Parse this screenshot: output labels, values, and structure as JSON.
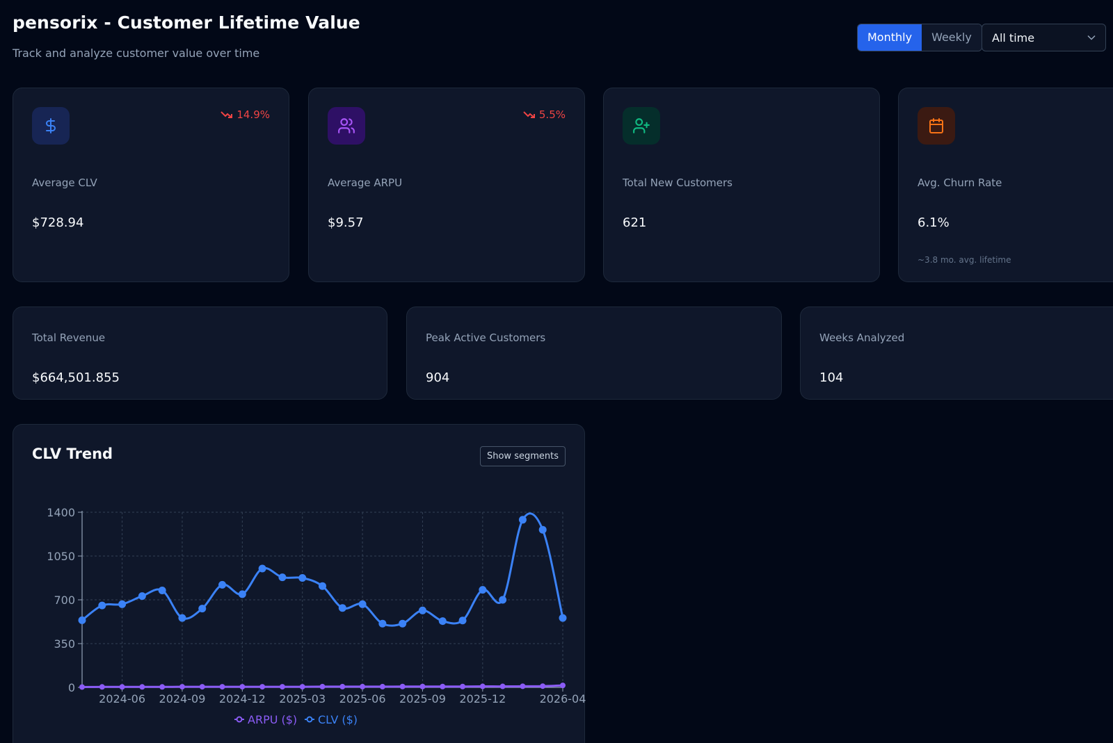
{
  "header": {
    "title": "pensorix - Customer Lifetime Value",
    "subtitle": "Track and analyze customer value over time",
    "period_toggle": {
      "options": [
        "Monthly",
        "Weekly"
      ],
      "selected": "Monthly"
    },
    "range_select": {
      "value": "All time"
    }
  },
  "kpis": [
    {
      "label": "Average CLV",
      "value": "$728.94",
      "trend": "14.9%",
      "trend_direction": "down",
      "icon": "dollar-icon",
      "icon_color": "#3b82f6",
      "icon_bg": "#172554"
    },
    {
      "label": "Average ARPU",
      "value": "$9.57",
      "trend": "5.5%",
      "trend_direction": "down",
      "icon": "users-icon",
      "icon_color": "#a855f7",
      "icon_bg": "#2e1065"
    },
    {
      "label": "Total New Customers",
      "value": "621",
      "icon": "user-plus-icon",
      "icon_color": "#10b981",
      "icon_bg": "#052e2b"
    },
    {
      "label": "Avg. Churn Rate",
      "value": "6.1%",
      "note": "~3.8 mo. avg. lifetime",
      "icon": "calendar-icon",
      "icon_color": "#f97316",
      "icon_bg": "#3b1a12"
    }
  ],
  "stats": [
    {
      "label": "Total Revenue",
      "value": "$664,501.855"
    },
    {
      "label": "Peak Active Customers",
      "value": "904"
    },
    {
      "label": "Weeks Analyzed",
      "value": "104"
    }
  ],
  "chart": {
    "title": "CLV Trend",
    "segments_button": "Show segments"
  },
  "colors": {
    "accent": "#2563eb",
    "clv_series": "#3b82f6",
    "arpu_series": "#8b5cf6",
    "negative": "#ef4444"
  },
  "chart_data": {
    "type": "line",
    "x": [
      "2024-04",
      "2024-05",
      "2024-06",
      "2024-07",
      "2024-08",
      "2024-09",
      "2024-10",
      "2024-11",
      "2024-12",
      "2025-01",
      "2025-02",
      "2025-03",
      "2025-04",
      "2025-05",
      "2025-06",
      "2025-07",
      "2025-08",
      "2025-09",
      "2025-10",
      "2025-11",
      "2025-12",
      "2026-01",
      "2026-02",
      "2026-03",
      "2026-04"
    ],
    "x_tick_labels": [
      "2024-06",
      "2024-09",
      "2024-12",
      "2025-03",
      "2025-06",
      "2025-09",
      "2025-12",
      "2026-04"
    ],
    "y_ticks": [
      0,
      350,
      700,
      1050,
      1400
    ],
    "ylim": [
      0,
      1400
    ],
    "grid": true,
    "legend_position": "bottom",
    "series": [
      {
        "name": "ARPU ($)",
        "values": [
          3,
          4,
          4,
          4,
          4,
          5,
          5,
          5,
          5,
          5,
          5,
          5,
          6,
          6,
          6,
          6,
          7,
          7,
          7,
          7,
          8,
          8,
          9,
          10,
          16
        ]
      },
      {
        "name": "CLV ($)",
        "values": [
          537,
          655,
          665,
          730,
          775,
          555,
          630,
          820,
          745,
          950,
          880,
          875,
          810,
          635,
          665,
          510,
          510,
          615,
          530,
          535,
          780,
          700,
          1340,
          1260,
          555
        ]
      }
    ]
  }
}
